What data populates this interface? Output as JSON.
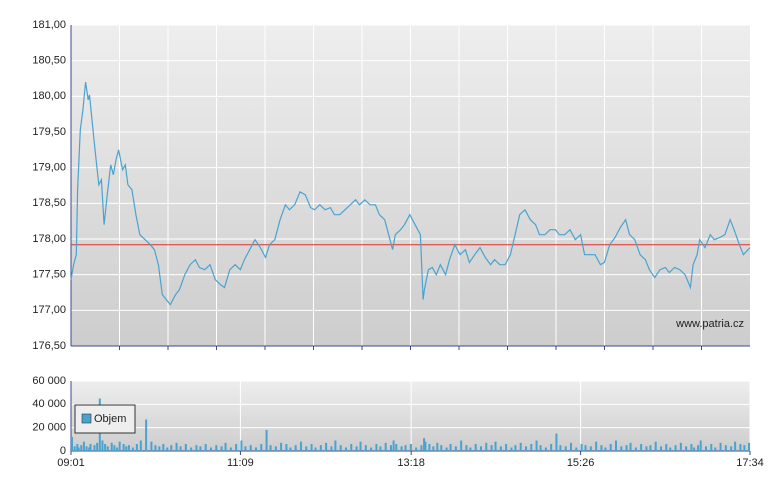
{
  "chart_data": [
    {
      "type": "line",
      "x": [
        541,
        543,
        545,
        546,
        548,
        550,
        552,
        554,
        555,
        558,
        560,
        562,
        564,
        566,
        568,
        571,
        573,
        575,
        577,
        580,
        582,
        584,
        587,
        590,
        593,
        597,
        601,
        604,
        607,
        610,
        613,
        616,
        620,
        623,
        627,
        631,
        635,
        638,
        642,
        646,
        650,
        654,
        657,
        661,
        665,
        669,
        672,
        676,
        680,
        684,
        688,
        691,
        695,
        699,
        703,
        706,
        710,
        714,
        718,
        722,
        725,
        729,
        733,
        737,
        740,
        744,
        748,
        752,
        756,
        759,
        763,
        767,
        771,
        774,
        778,
        782,
        784,
        786,
        790,
        793,
        797,
        801,
        805,
        807,
        808,
        811,
        814,
        817,
        820,
        824,
        827,
        831,
        835,
        839,
        842,
        846,
        850,
        854,
        858,
        861,
        865,
        869,
        873,
        876,
        880,
        884,
        888,
        892,
        895,
        899,
        903,
        907,
        910,
        914,
        918,
        922,
        926,
        929,
        933,
        937,
        941,
        944,
        948,
        952,
        956,
        960,
        963,
        967,
        971,
        975,
        978,
        982,
        986,
        990,
        993,
        997,
        1001,
        1005,
        1009,
        1011,
        1014,
        1016,
        1020,
        1024,
        1027,
        1031,
        1035,
        1039,
        1042,
        1046,
        1049,
        1054
      ],
      "series": [
        {
          "color": "#4aa3cf",
          "values": [
            177.43,
            177.64,
            177.78,
            178.69,
            179.53,
            179.81,
            180.2,
            179.95,
            180.02,
            179.46,
            179.11,
            178.76,
            178.83,
            178.2,
            178.55,
            179.04,
            178.9,
            179.11,
            179.25,
            178.97,
            179.04,
            178.76,
            178.69,
            178.34,
            178.06,
            177.99,
            177.92,
            177.85,
            177.64,
            177.22,
            177.15,
            177.08,
            177.22,
            177.29,
            177.5,
            177.64,
            177.71,
            177.6,
            177.57,
            177.64,
            177.43,
            177.36,
            177.32,
            177.57,
            177.64,
            177.57,
            177.71,
            177.85,
            177.99,
            177.88,
            177.74,
            177.92,
            177.99,
            178.27,
            178.48,
            178.41,
            178.48,
            178.66,
            178.62,
            178.44,
            178.41,
            178.48,
            178.41,
            178.44,
            178.34,
            178.34,
            178.41,
            178.48,
            178.55,
            178.48,
            178.55,
            178.48,
            178.48,
            178.34,
            178.27,
            177.99,
            177.85,
            178.06,
            178.13,
            178.2,
            178.34,
            178.2,
            178.06,
            177.15,
            177.29,
            177.57,
            177.6,
            177.5,
            177.64,
            177.5,
            177.71,
            177.92,
            177.78,
            177.85,
            177.67,
            177.78,
            177.88,
            177.74,
            177.64,
            177.71,
            177.64,
            177.64,
            177.78,
            178.02,
            178.34,
            178.41,
            178.27,
            178.2,
            178.06,
            178.06,
            178.13,
            178.13,
            178.06,
            178.06,
            178.13,
            177.99,
            178.06,
            177.78,
            177.78,
            177.78,
            177.64,
            177.67,
            177.92,
            178.02,
            178.16,
            178.27,
            178.06,
            177.99,
            177.78,
            177.71,
            177.57,
            177.46,
            177.57,
            177.6,
            177.53,
            177.6,
            177.57,
            177.5,
            177.32,
            177.64,
            177.78,
            177.99,
            177.88,
            178.06,
            177.99,
            178.02,
            178.06,
            178.27,
            178.13,
            177.92,
            177.78,
            177.88
          ]
        }
      ],
      "xlim": [
        541,
        1054
      ],
      "ylim": [
        176.5,
        181
      ],
      "yticks": [
        {
          "value": 176.5,
          "label": "176,50"
        },
        {
          "value": 177,
          "label": "177,00"
        },
        {
          "value": 177.5,
          "label": "177,50"
        },
        {
          "value": 178,
          "label": "178,00"
        },
        {
          "value": 178.5,
          "label": "178,50"
        },
        {
          "value": 179,
          "label": "179,00"
        },
        {
          "value": 179.5,
          "label": "179,50"
        },
        {
          "value": 180,
          "label": "180,00"
        },
        {
          "value": 180.5,
          "label": "180,50"
        },
        {
          "value": 181,
          "label": "181,00"
        }
      ],
      "reference_line": {
        "value": 177.92,
        "color": "#d9312b"
      },
      "watermark": "www.patria.cz",
      "grid": true
    },
    {
      "type": "bar",
      "x": [
        541,
        543,
        545,
        546,
        548,
        550,
        552,
        554,
        555,
        558,
        560,
        562,
        564,
        566,
        568,
        571,
        573,
        575,
        577,
        580,
        582,
        584,
        587,
        590,
        593,
        597,
        601,
        604,
        607,
        610,
        613,
        616,
        620,
        623,
        627,
        631,
        635,
        638,
        642,
        646,
        650,
        654,
        657,
        661,
        665,
        669,
        672,
        676,
        680,
        684,
        688,
        691,
        695,
        699,
        703,
        706,
        710,
        714,
        718,
        722,
        725,
        729,
        733,
        737,
        740,
        744,
        748,
        752,
        756,
        759,
        763,
        767,
        771,
        774,
        778,
        782,
        784,
        786,
        790,
        793,
        797,
        801,
        805,
        807,
        808,
        811,
        814,
        817,
        820,
        824,
        827,
        831,
        835,
        839,
        842,
        846,
        850,
        854,
        858,
        861,
        865,
        869,
        873,
        876,
        880,
        884,
        888,
        892,
        895,
        899,
        903,
        907,
        910,
        914,
        918,
        922,
        926,
        929,
        933,
        937,
        941,
        944,
        948,
        952,
        956,
        960,
        963,
        967,
        971,
        975,
        978,
        982,
        986,
        990,
        993,
        997,
        1001,
        1005,
        1009,
        1011,
        1014,
        1016,
        1020,
        1024,
        1027,
        1031,
        1035,
        1039,
        1042,
        1046,
        1049,
        1054
      ],
      "series": [
        {
          "name": "Objem",
          "color": "#4aa3cf",
          "values": [
            12000,
            4000,
            6000,
            3000,
            5000,
            8000,
            4000,
            3000,
            6000,
            5000,
            7000,
            45000,
            9000,
            6000,
            4000,
            7000,
            5000,
            3000,
            8000,
            6000,
            4000,
            5000,
            3000,
            6000,
            9000,
            27000,
            8000,
            5000,
            4000,
            6000,
            3000,
            5000,
            7000,
            4000,
            6000,
            3000,
            5000,
            4000,
            6000,
            3000,
            5000,
            4000,
            7000,
            3000,
            6000,
            9000,
            4000,
            5000,
            3000,
            6000,
            18000,
            5000,
            4000,
            7000,
            6000,
            3000,
            5000,
            8000,
            4000,
            6000,
            3000,
            5000,
            7000,
            4000,
            9000,
            5000,
            3000,
            6000,
            4000,
            8000,
            5000,
            3000,
            6000,
            4000,
            7000,
            5000,
            9000,
            6000,
            4000,
            5000,
            6000,
            3000,
            5000,
            11000,
            8000,
            6000,
            4000,
            7000,
            5000,
            3000,
            6000,
            4000,
            9000,
            5000,
            3000,
            6000,
            4000,
            7000,
            5000,
            8000,
            4000,
            6000,
            3000,
            5000,
            7000,
            4000,
            6000,
            9000,
            5000,
            3000,
            6000,
            15000,
            5000,
            4000,
            7000,
            3000,
            6000,
            5000,
            4000,
            8000,
            5000,
            3000,
            6000,
            9000,
            4000,
            5000,
            7000,
            3000,
            6000,
            4000,
            5000,
            8000,
            4000,
            6000,
            3000,
            5000,
            7000,
            4000,
            6000,
            3000,
            5000,
            9000,
            4000,
            6000,
            3000,
            7000,
            5000,
            4000,
            8000,
            6000,
            5000,
            7000
          ]
        }
      ],
      "xlim": [
        541,
        1054
      ],
      "xticks": [
        {
          "value": 541,
          "label": "09:01"
        },
        {
          "value": 669,
          "label": "11:09"
        },
        {
          "value": 798,
          "label": "13:18"
        },
        {
          "value": 926,
          "label": "15:26"
        },
        {
          "value": 1054,
          "label": "17:34"
        }
      ],
      "ylim": [
        0,
        60000
      ],
      "yticks": [
        0,
        {
          "value": 20000,
          "label": "20 000"
        },
        {
          "value": 40000,
          "label": "40 000"
        },
        {
          "value": 60000,
          "label": "60 000"
        }
      ],
      "grid": true
    }
  ]
}
